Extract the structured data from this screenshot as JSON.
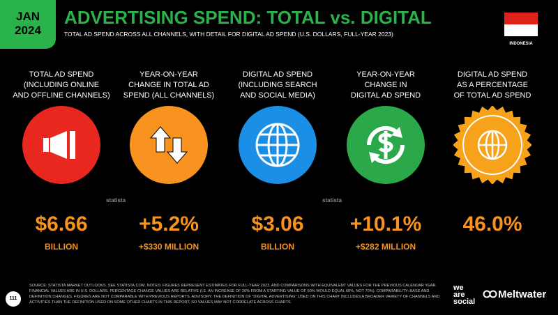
{
  "header": {
    "date_month": "JAN",
    "date_year": "2024",
    "title": "ADVERTISING SPEND: TOTAL vs. DIGITAL",
    "subtitle": "TOTAL AD SPEND ACROSS ALL CHANNELS, WITH DETAIL FOR DIGITAL AD SPEND (U.S. DOLLARS, FULL-YEAR 2023)",
    "country": "INDONESIA"
  },
  "metrics": [
    {
      "label": [
        "TOTAL AD SPEND",
        "(INCLUDING ONLINE",
        "AND OFFLINE CHANNELS)"
      ],
      "value": "$6.66",
      "sublabel": "BILLION"
    },
    {
      "label": [
        "YEAR-ON-YEAR",
        "CHANGE IN TOTAL AD",
        "SPEND (ALL CHANNELS)"
      ],
      "value": "+5.2%",
      "sublabel": "+$330 MILLION"
    },
    {
      "label": [
        "DIGITAL AD SPEND",
        "(INCLUDING SEARCH",
        "AND SOCIAL MEDIA)"
      ],
      "value": "$3.06",
      "sublabel": "BILLION"
    },
    {
      "label": [
        "YEAR-ON-YEAR",
        "CHANGE IN",
        "DIGITAL AD SPEND"
      ],
      "value": "+10.1%",
      "sublabel": "+$282 MILLION"
    },
    {
      "label": [
        "DIGITAL AD SPEND",
        "AS A PERCENTAGE",
        "OF TOTAL AD SPEND"
      ],
      "value": "46.0%",
      "sublabel": ""
    }
  ],
  "watermarks": [
    "statista",
    "statista"
  ],
  "footer": {
    "page": "111",
    "source": "SOURCE: STATISTA MARKET OUTLOOKS. SEE STATISTA.COM. NOTES: FIGURES REPRESENT ESTIMATES FOR FULL-YEAR 2023, AND COMPARISONS WITH EQUIVALENT VALUES FOR THE PREVIOUS CALENDAR YEAR. FINANCIAL VALUES ARE IN U.S. DOLLARS. PERCENTAGE CHANGE VALUES ARE RELATIVE (I.E. AN INCREASE OF 20% FROM A STARTING VALUE OF 50% WOULD EQUAL 60%, NOT 70%). COMPARABILITY: BASE AND DEFINITION CHANGES. FIGURES ARE NOT COMPARABLE WITH PREVIOUS REPORTS. ADVISORY: THE DEFINITION OF \"DIGITAL ADVERTISING\" USED ON THIS CHART INCLUDES A BROADER VARIETY OF CHANNELS AND ACTIVITIES THAN THE DEFINITION USED ON SOME OTHER CHARTS IN THIS REPORT, SO VALUES MAY NOT CORRELATE ACROSS CHARTS.",
    "brand1": [
      "we",
      "are",
      "social"
    ],
    "brand2": "Meltwater"
  }
}
